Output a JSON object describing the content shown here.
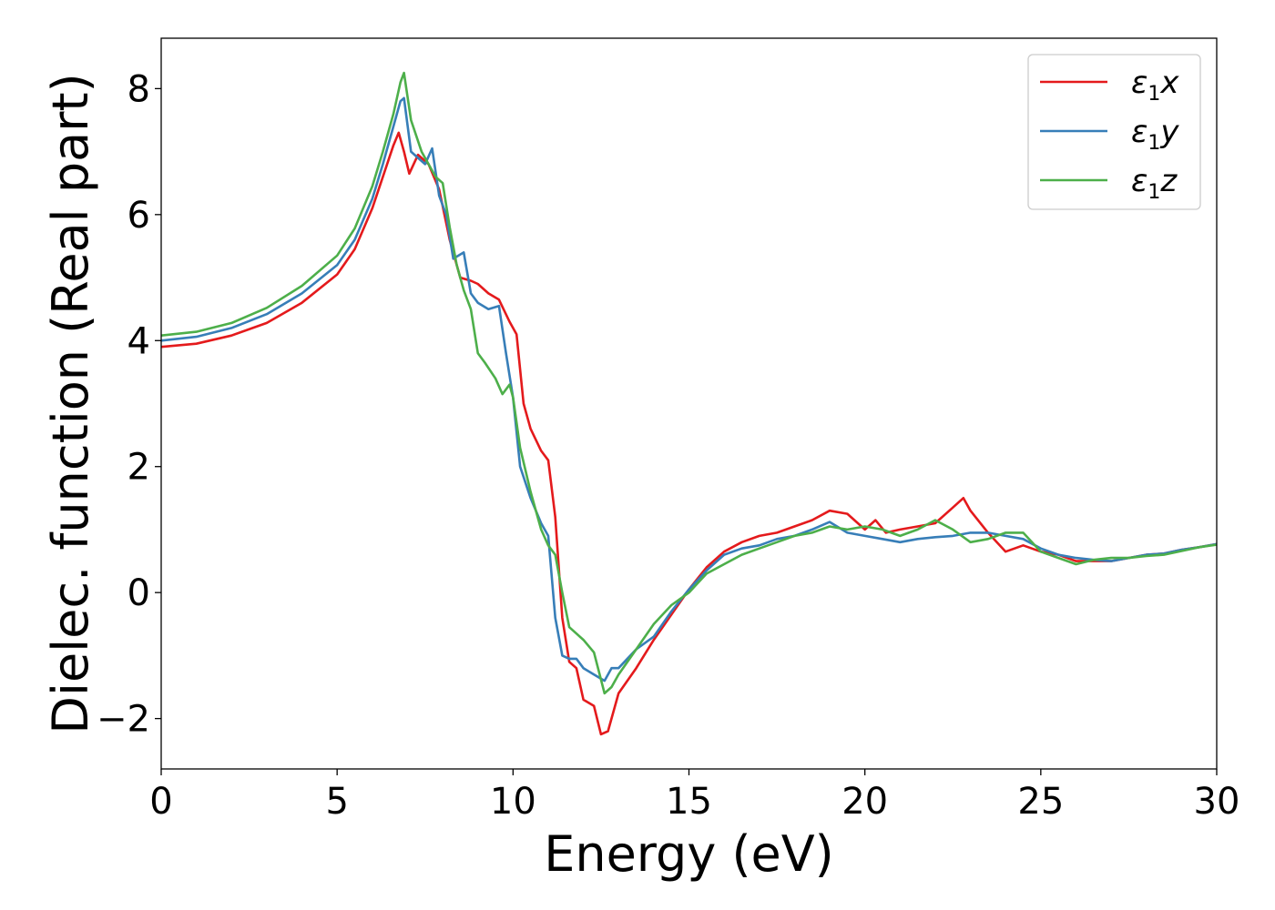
{
  "chart_data": {
    "type": "line",
    "title": "",
    "xlabel": "Energy (eV)",
    "ylabel": "Dielec. function (Real part)",
    "xlim": [
      0,
      30
    ],
    "ylim": [
      -2.8,
      8.8
    ],
    "xticks": [
      0,
      5,
      10,
      15,
      20,
      25,
      30
    ],
    "xtick_labels": [
      "0",
      "5",
      "10",
      "15",
      "20",
      "25",
      "30"
    ],
    "yticks": [
      -2,
      0,
      2,
      4,
      6,
      8
    ],
    "ytick_labels": [
      "−2",
      "0",
      "2",
      "4",
      "6",
      "8"
    ],
    "grid": false,
    "legend_position": "top-right",
    "series": [
      {
        "name": "ε1x",
        "label_base": "ε",
        "label_sub": "1",
        "label_tail": "x",
        "color": "#e41a1c",
        "x": [
          0,
          1,
          2,
          3,
          4,
          5,
          5.5,
          6,
          6.3,
          6.6,
          6.75,
          6.9,
          7.05,
          7.3,
          7.6,
          7.9,
          8.2,
          8.5,
          8.8,
          9.0,
          9.3,
          9.6,
          9.9,
          10.1,
          10.3,
          10.5,
          10.8,
          11.0,
          11.2,
          11.4,
          11.6,
          11.8,
          12.0,
          12.3,
          12.5,
          12.7,
          13.0,
          13.5,
          14.0,
          14.5,
          15.0,
          15.5,
          16.0,
          16.5,
          17.0,
          17.5,
          18.0,
          18.5,
          19.0,
          19.5,
          20.0,
          20.3,
          20.6,
          21.0,
          21.5,
          22.0,
          22.5,
          22.8,
          23.0,
          23.5,
          24.0,
          24.5,
          25.0,
          25.5,
          26.0,
          26.5,
          27.0,
          27.5,
          28.0,
          28.5,
          29.0,
          29.5,
          30.0
        ],
        "y": [
          3.9,
          3.95,
          4.08,
          4.28,
          4.6,
          5.05,
          5.45,
          6.1,
          6.6,
          7.1,
          7.3,
          7.0,
          6.65,
          6.95,
          6.8,
          6.4,
          5.6,
          5.0,
          4.95,
          4.9,
          4.75,
          4.65,
          4.3,
          4.1,
          3.0,
          2.6,
          2.25,
          2.1,
          1.2,
          -0.4,
          -1.1,
          -1.2,
          -1.7,
          -1.8,
          -2.25,
          -2.2,
          -1.6,
          -1.2,
          -0.75,
          -0.35,
          0.05,
          0.4,
          0.65,
          0.8,
          0.9,
          0.95,
          1.05,
          1.15,
          1.3,
          1.25,
          1.0,
          1.15,
          0.95,
          1.0,
          1.05,
          1.1,
          1.35,
          1.5,
          1.3,
          0.95,
          0.65,
          0.75,
          0.65,
          0.6,
          0.5,
          0.5,
          0.5,
          0.55,
          0.6,
          0.62,
          0.68,
          0.72,
          0.77
        ]
      },
      {
        "name": "ε1y",
        "label_base": "ε",
        "label_sub": "1",
        "label_tail": "y",
        "color": "#377eb8",
        "x": [
          0,
          1,
          2,
          3,
          4,
          5,
          5.5,
          6,
          6.3,
          6.6,
          6.8,
          6.9,
          7.1,
          7.3,
          7.5,
          7.7,
          7.9,
          8.1,
          8.3,
          8.6,
          8.8,
          9.0,
          9.3,
          9.6,
          9.8,
          10.0,
          10.2,
          10.5,
          10.8,
          11.0,
          11.2,
          11.4,
          11.6,
          11.8,
          12.0,
          12.3,
          12.6,
          12.8,
          13.0,
          13.5,
          14.0,
          14.5,
          15.0,
          15.5,
          16.0,
          16.5,
          17.0,
          17.5,
          18.0,
          18.5,
          19.0,
          19.5,
          20.0,
          20.5,
          21.0,
          21.5,
          22.0,
          22.5,
          23.0,
          23.5,
          24.0,
          24.5,
          25.0,
          25.5,
          26.0,
          26.5,
          27.0,
          27.5,
          28.0,
          28.5,
          29.0,
          29.5,
          30.0
        ],
        "y": [
          4.0,
          4.06,
          4.2,
          4.42,
          4.75,
          5.2,
          5.6,
          6.25,
          6.8,
          7.4,
          7.8,
          7.85,
          7.0,
          6.9,
          6.8,
          7.05,
          6.3,
          6.0,
          5.3,
          5.4,
          4.75,
          4.6,
          4.5,
          4.55,
          3.8,
          3.1,
          2.0,
          1.5,
          1.1,
          0.9,
          -0.4,
          -1.0,
          -1.05,
          -1.05,
          -1.2,
          -1.3,
          -1.4,
          -1.2,
          -1.2,
          -0.9,
          -0.7,
          -0.3,
          0.05,
          0.35,
          0.6,
          0.7,
          0.75,
          0.85,
          0.9,
          1.0,
          1.12,
          0.95,
          0.9,
          0.85,
          0.8,
          0.85,
          0.88,
          0.9,
          0.95,
          0.95,
          0.9,
          0.85,
          0.7,
          0.6,
          0.55,
          0.52,
          0.5,
          0.55,
          0.6,
          0.62,
          0.68,
          0.72,
          0.77
        ]
      },
      {
        "name": "ε1z",
        "label_base": "ε",
        "label_sub": "1",
        "label_tail": "z",
        "color": "#4daf4a",
        "x": [
          0,
          1,
          2,
          3,
          4,
          5,
          5.5,
          6,
          6.3,
          6.6,
          6.8,
          6.9,
          7.1,
          7.4,
          7.8,
          8.0,
          8.2,
          8.4,
          8.6,
          8.8,
          9.0,
          9.2,
          9.5,
          9.7,
          9.9,
          10.0,
          10.2,
          10.5,
          10.8,
          11.0,
          11.2,
          11.4,
          11.6,
          11.8,
          12.0,
          12.3,
          12.6,
          12.8,
          13.0,
          13.5,
          14.0,
          14.5,
          15.0,
          15.5,
          16.0,
          16.5,
          17.0,
          17.5,
          18.0,
          18.5,
          19.0,
          19.5,
          20.0,
          20.5,
          21.0,
          21.5,
          22.0,
          22.5,
          23.0,
          23.5,
          24.0,
          24.5,
          25.0,
          25.5,
          26.0,
          26.5,
          27.0,
          27.5,
          28.0,
          28.5,
          29.0,
          29.5,
          30.0
        ],
        "y": [
          4.08,
          4.14,
          4.28,
          4.52,
          4.87,
          5.35,
          5.78,
          6.45,
          7.0,
          7.6,
          8.1,
          8.25,
          7.5,
          7.0,
          6.6,
          6.5,
          5.8,
          5.2,
          4.8,
          4.5,
          3.8,
          3.65,
          3.4,
          3.15,
          3.3,
          3.1,
          2.3,
          1.6,
          1.0,
          0.75,
          0.6,
          0.0,
          -0.55,
          -0.65,
          -0.75,
          -0.95,
          -1.6,
          -1.5,
          -1.3,
          -0.9,
          -0.5,
          -0.2,
          0.0,
          0.3,
          0.45,
          0.6,
          0.7,
          0.8,
          0.9,
          0.95,
          1.05,
          1.0,
          1.05,
          1.0,
          0.9,
          1.0,
          1.15,
          1.0,
          0.8,
          0.85,
          0.95,
          0.95,
          0.65,
          0.55,
          0.45,
          0.52,
          0.55,
          0.55,
          0.58,
          0.6,
          0.66,
          0.72,
          0.76
        ]
      }
    ]
  }
}
